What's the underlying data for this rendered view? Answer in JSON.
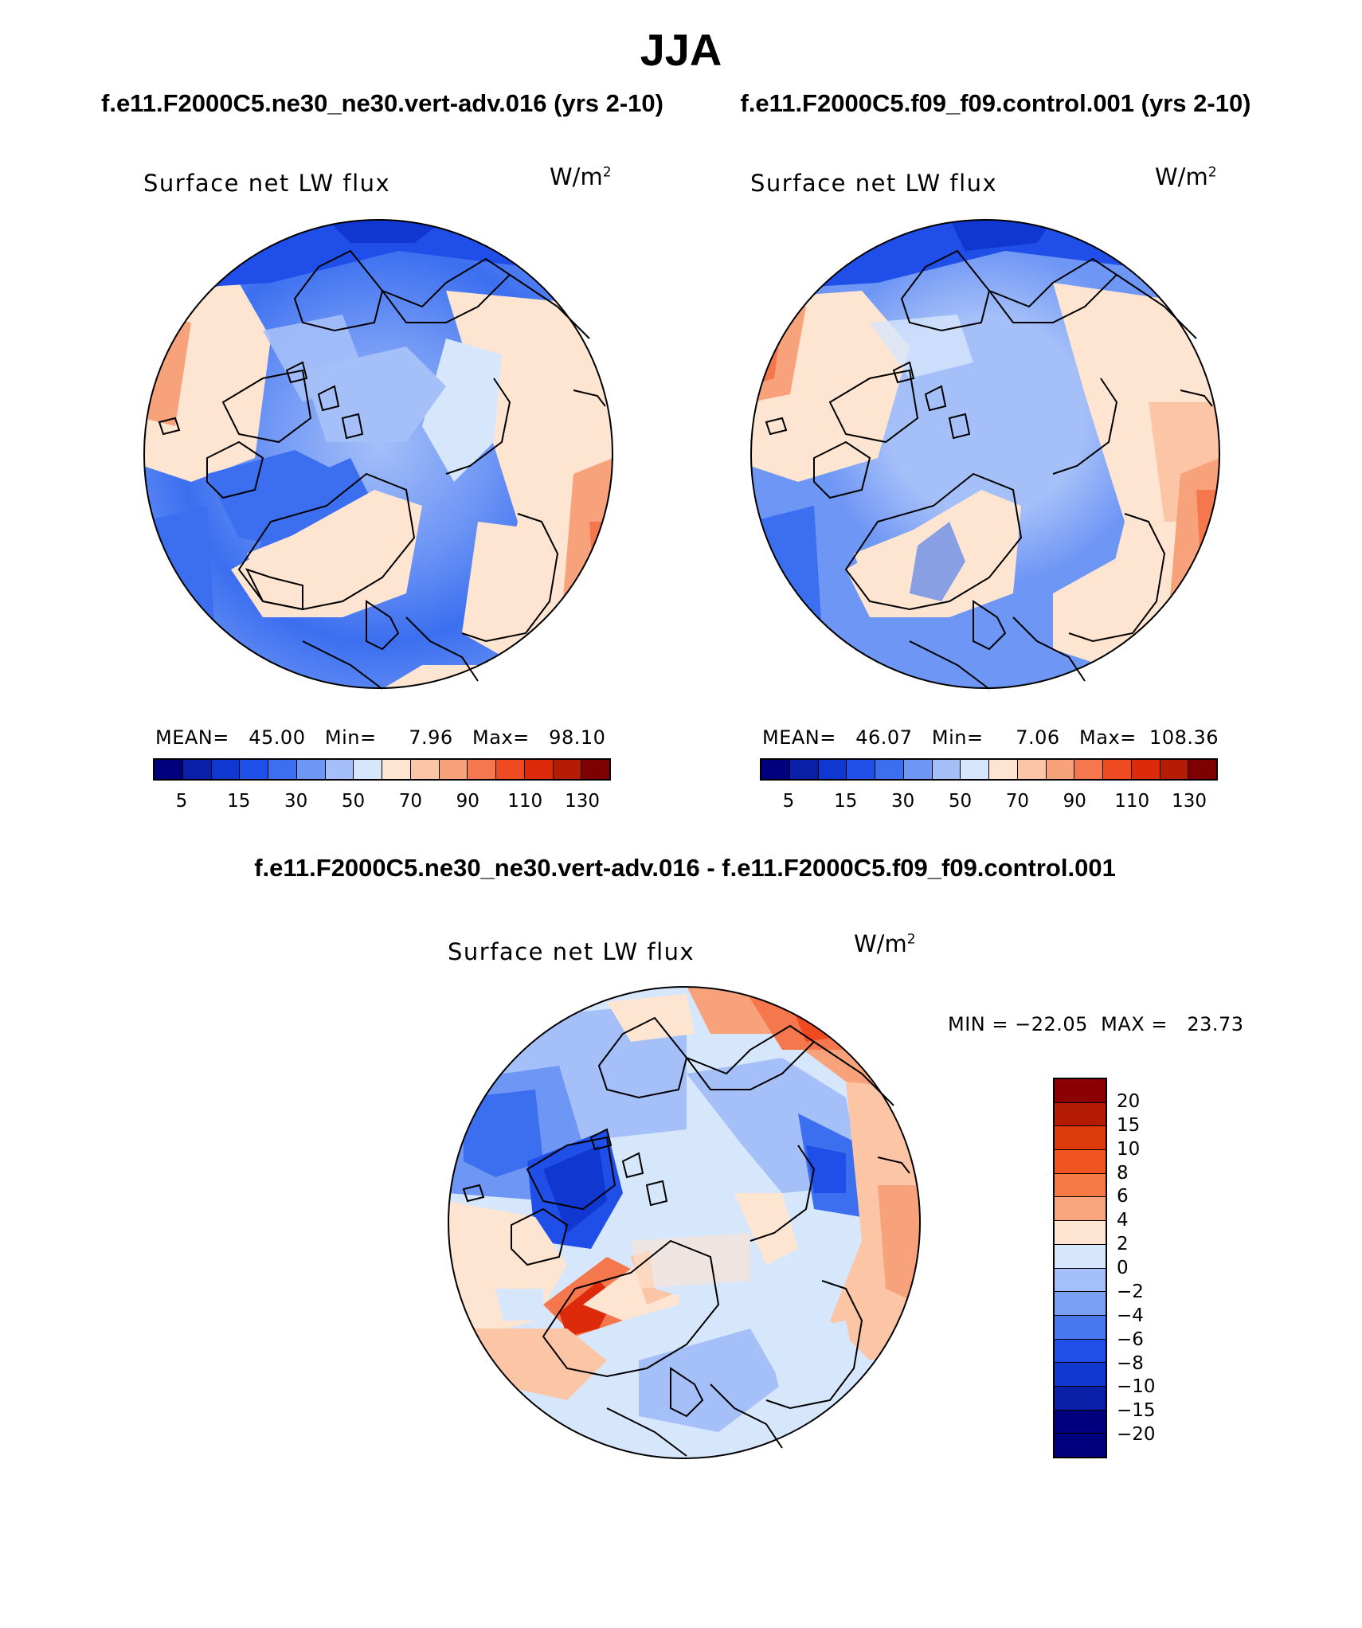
{
  "title": "JJA",
  "panels": [
    {
      "case_title": "f.e11.F2000C5.ne30_ne30.vert-adv.016 (yrs 2-10)",
      "map_label": "Surface net LW flux",
      "units": "W/m",
      "units_exp": "2",
      "stats": {
        "mean_label": "MEAN=",
        "mean": "45.00",
        "min_label": "Min=",
        "min": "7.96",
        "max_label": "Max=",
        "max": "98.10"
      }
    },
    {
      "case_title": "f.e11.F2000C5.f09_f09.control.001 (yrs 2-10)",
      "map_label": "Surface net LW flux",
      "units": "W/m",
      "units_exp": "2",
      "stats": {
        "mean_label": "MEAN=",
        "mean": "46.07",
        "min_label": "Min=",
        "min": "7.06",
        "max_label": "Max=",
        "max": "108.36"
      }
    }
  ],
  "diff_panel": {
    "title": "f.e11.F2000C5.ne30_ne30.vert-adv.016 - f.e11.F2000C5.f09_f09.control.001",
    "map_label": "Surface net LW flux",
    "units": "W/m",
    "units_exp": "2",
    "minmax": "MIN = −22.05  MAX =   23.73"
  },
  "colorbar_abs": {
    "colors": [
      "#00007f",
      "#0a1fa8",
      "#1037d0",
      "#1f4fe8",
      "#3c6ff0",
      "#6e96f5",
      "#a5bff8",
      "#d6e6fb",
      "#fde5d2",
      "#fbc5a6",
      "#f8a27c",
      "#f5774d",
      "#f04a22",
      "#dc2a0a",
      "#b51c04",
      "#7f0000"
    ],
    "labels": [
      "5",
      "15",
      "30",
      "50",
      "70",
      "90",
      "110",
      "130"
    ]
  },
  "colorbar_diff": {
    "colors_top_to_bottom": [
      "#8b0000",
      "#b51c04",
      "#dc3a0a",
      "#f0541f",
      "#f57a46",
      "#f8a47c",
      "#fde5d2",
      "#d6e6fb",
      "#a5bff8",
      "#7aa0f4",
      "#4a78ee",
      "#1f4fe8",
      "#1037d0",
      "#0a1fa8",
      "#00007f"
    ],
    "labels": [
      "20",
      "15",
      "10",
      "8",
      "6",
      "4",
      "2",
      "0",
      "−2",
      "−4",
      "−6",
      "−8",
      "−10",
      "−15",
      "−20"
    ]
  }
}
